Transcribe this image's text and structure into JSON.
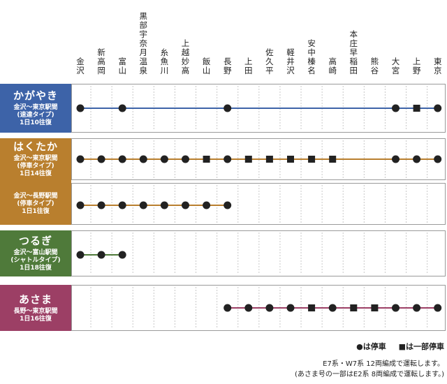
{
  "stations": [
    "金沢",
    "新高岡",
    "富山",
    "黒部宇奈月温泉",
    "糸魚川",
    "上越妙高",
    "飯山",
    "長野",
    "上田",
    "佐久平",
    "軽井沢",
    "安中榛名",
    "高崎",
    "本庄早稲田",
    "熊谷",
    "大宮",
    "上野",
    "東京"
  ],
  "services": [
    {
      "name": "かがやき",
      "color": "#3d63a8",
      "line_color": "#3d63a8",
      "rows": [
        {
          "sub": [
            "金沢〜東京駅間",
            "(速達タイプ)",
            "1日10往復"
          ],
          "stops": {
            "0": "all",
            "2": "all",
            "7": "all",
            "15": "all",
            "16": "some",
            "17": "all"
          },
          "from": 0,
          "to": 17
        }
      ]
    },
    {
      "name": "はくたか",
      "color": "#b97f2e",
      "line_color": "#b97f2e",
      "rows": [
        {
          "sub": [
            "金沢〜東京駅間",
            "(停車タイプ)",
            "1日14往復"
          ],
          "stops": {
            "0": "all",
            "1": "all",
            "2": "all",
            "3": "all",
            "4": "all",
            "5": "all",
            "6": "some",
            "7": "all",
            "8": "some",
            "9": "some",
            "10": "some",
            "11": "some",
            "12": "some",
            "15": "all",
            "16": "all",
            "17": "all"
          },
          "from": 0,
          "to": 17
        },
        {
          "sub": [
            "金沢〜長野駅間",
            "(停車タイプ)",
            "1日1往復"
          ],
          "stops": {
            "0": "all",
            "1": "all",
            "2": "all",
            "3": "all",
            "4": "all",
            "5": "all",
            "6": "all",
            "7": "all"
          },
          "from": 0,
          "to": 7
        }
      ]
    },
    {
      "name": "つるぎ",
      "color": "#4f7a3a",
      "line_color": "#4f7a3a",
      "rows": [
        {
          "sub": [
            "金沢〜富山駅間",
            "(シャトルタイプ)",
            "1日18往復"
          ],
          "stops": {
            "0": "all",
            "1": "all",
            "2": "all"
          },
          "from": 0,
          "to": 2
        }
      ]
    },
    {
      "name": "あさま",
      "color": "#9c3f65",
      "line_color": "#9c3f65",
      "rows": [
        {
          "sub": [
            "長野〜東京駅間",
            "1日16往復"
          ],
          "stops": {
            "7": "all",
            "8": "all",
            "9": "all",
            "10": "all",
            "11": "some",
            "12": "all",
            "13": "some",
            "14": "some",
            "15": "all",
            "16": "all",
            "17": "all"
          },
          "from": 7,
          "to": 17
        }
      ]
    }
  ],
  "legend": {
    "all_stop": "●は停車",
    "some_stop": "■は一部停車"
  },
  "notes": [
    "E7系・W7系 12両編成で運転します。",
    "(あさま号の一部はE2系 8両編成で運転します。)"
  ]
}
